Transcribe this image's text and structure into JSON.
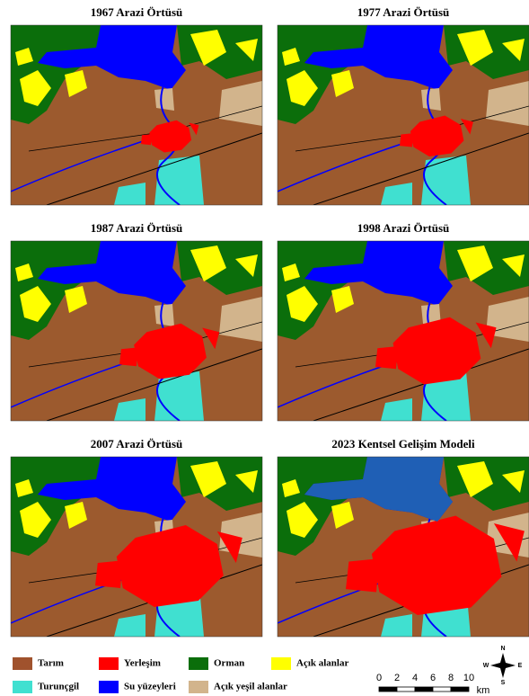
{
  "panels": [
    {
      "title": "1967 Arazi Örtüsü"
    },
    {
      "title": "1977 Arazi Örtüsü"
    },
    {
      "title": "1987 Arazi Örtüsü"
    },
    {
      "title": "1998 Arazi Örtüsü"
    },
    {
      "title": "2007 Arazi Örtüsü"
    },
    {
      "title": "2023 Kentsel Gelişim Modeli"
    }
  ],
  "legend": [
    {
      "label": "Tarım",
      "color": "#a0522d"
    },
    {
      "label": "Yerleşim",
      "color": "#ff0000"
    },
    {
      "label": "Orman",
      "color": "#0b6e0b"
    },
    {
      "label": "Açık alanlar",
      "color": "#ffff00"
    },
    {
      "label": "Turunçgil",
      "color": "#40e0d0"
    },
    {
      "label": "Su yüzeyleri",
      "color": "#0000ff"
    },
    {
      "label": "Açık yeşil alanlar",
      "color": "#d2b48c"
    }
  ],
  "scale_bar": {
    "ticks": [
      0,
      2,
      4,
      6,
      8,
      10
    ],
    "unit": "km"
  },
  "north_arrow": {
    "n": "N",
    "e": "E",
    "s": "S",
    "w": "W"
  }
}
